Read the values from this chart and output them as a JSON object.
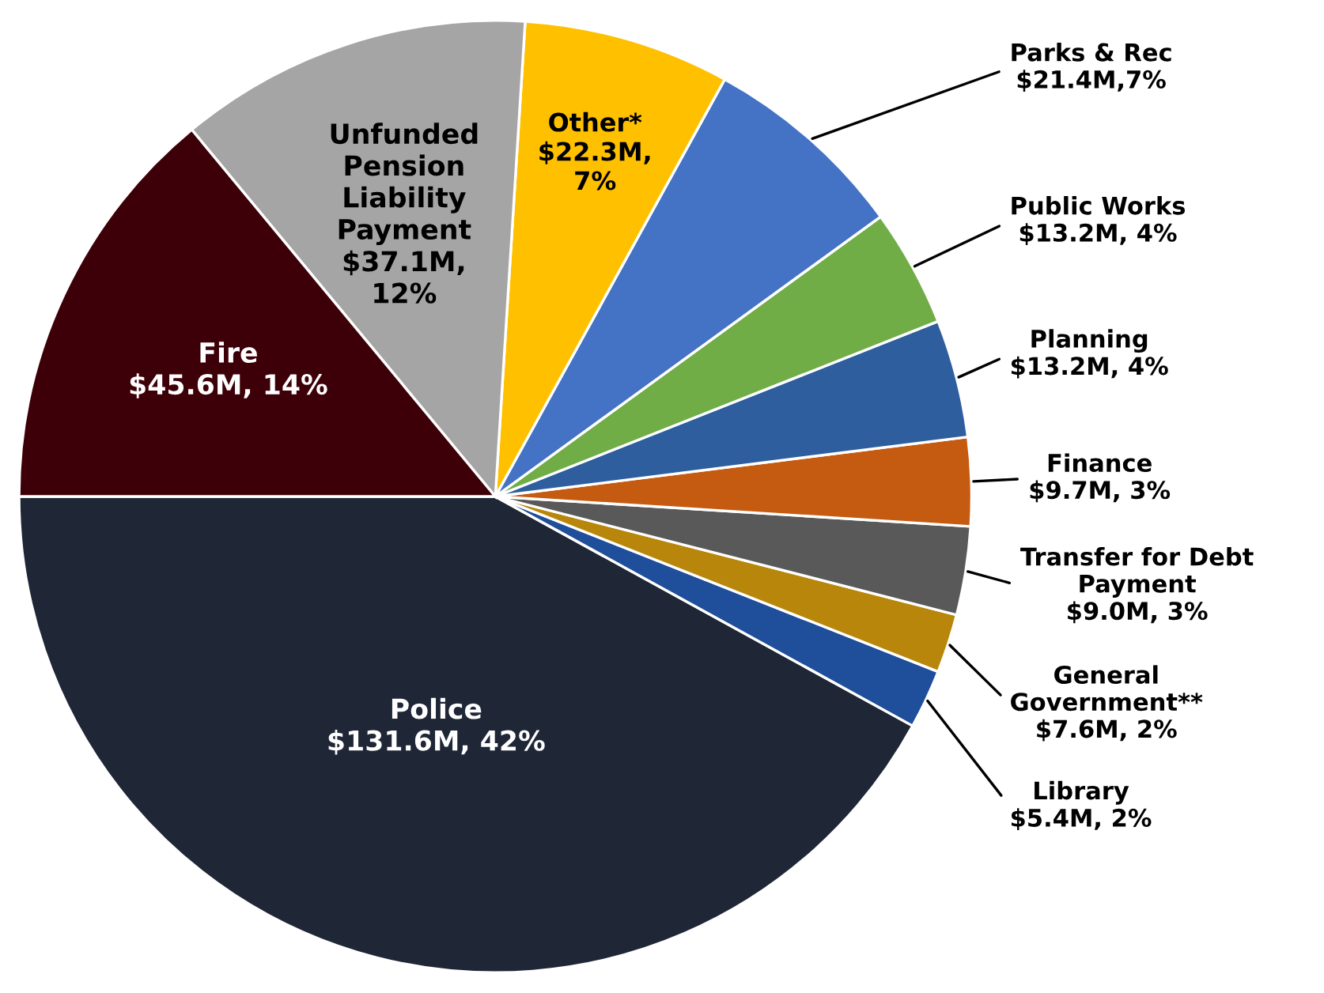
{
  "chart_data": {
    "type": "pie",
    "categories": [
      "Police",
      "Library",
      "General\nGovernment**",
      "Transfer for Debt\nPayment",
      "Finance",
      "Planning",
      "Public Works",
      "Parks & Rec",
      "Other*",
      "Unfunded\nPension\nLiability\nPayment",
      "Fire"
    ],
    "values": [
      42,
      2,
      2,
      3,
      3,
      4,
      4,
      7,
      7,
      12,
      14
    ],
    "value_labels": [
      "$131.6M, 42%",
      "$5.4M, 2%",
      "$7.6M, 2%",
      "$9.0M, 3%",
      "$9.7M, 3%",
      "$13.2M, 4%",
      "$13.2M, 4%",
      "$21.4M,7%",
      "$22.3M,\n7%",
      "$37.1M,\n12%",
      "$45.6M, 14%"
    ],
    "colors": [
      "#1f2636",
      "#1f4e9a",
      "#b8860b",
      "#595959",
      "#c55a11",
      "#2e5e9e",
      "#70ad47",
      "#4472c4",
      "#ffc000",
      "#a5a5a5",
      "#3d0008"
    ]
  }
}
